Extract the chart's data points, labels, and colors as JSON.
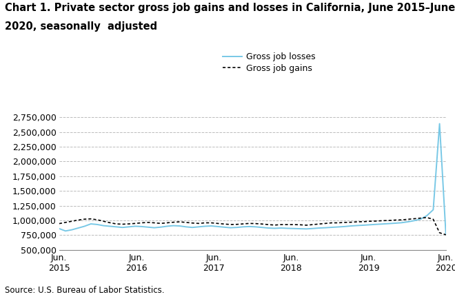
{
  "title_line1": "Chart 1. Private sector gross job gains and losses in California, June 2015–June",
  "title_line2": "2020, seasonally  adjusted",
  "source": "Source: U.S. Bureau of Labor Statistics.",
  "legend": [
    "Gross job losses",
    "Gross job gains"
  ],
  "losses_color": "#78c8e6",
  "gains_color": "#000000",
  "ylim": [
    500000,
    2900000
  ],
  "yticks": [
    500000,
    750000,
    1000000,
    1250000,
    1500000,
    1750000,
    2000000,
    2250000,
    2500000,
    2750000
  ],
  "xtick_labels": [
    "Jun.\n2015",
    "Jun.\n2016",
    "Jun.\n2017",
    "Jun.\n2018",
    "Jun.\n2019",
    "Jun.\n2020"
  ],
  "gross_job_losses": [
    860000,
    820000,
    840000,
    870000,
    900000,
    940000,
    930000,
    910000,
    900000,
    890000,
    880000,
    890000,
    900000,
    895000,
    885000,
    875000,
    885000,
    900000,
    910000,
    905000,
    890000,
    880000,
    890000,
    900000,
    905000,
    895000,
    885000,
    875000,
    880000,
    890000,
    895000,
    890000,
    880000,
    870000,
    865000,
    870000,
    865000,
    862000,
    858000,
    855000,
    862000,
    870000,
    875000,
    882000,
    888000,
    895000,
    905000,
    912000,
    918000,
    925000,
    932000,
    938000,
    945000,
    952000,
    960000,
    975000,
    995000,
    1020000,
    1080000,
    1180000,
    2640000,
    760000
  ],
  "gross_job_gains": [
    945000,
    965000,
    985000,
    1005000,
    1020000,
    1025000,
    1010000,
    985000,
    960000,
    940000,
    935000,
    940000,
    948000,
    958000,
    965000,
    958000,
    948000,
    958000,
    968000,
    975000,
    965000,
    955000,
    948000,
    958000,
    958000,
    948000,
    938000,
    930000,
    932000,
    940000,
    948000,
    945000,
    938000,
    928000,
    920000,
    928000,
    928000,
    928000,
    925000,
    918000,
    928000,
    938000,
    948000,
    958000,
    958000,
    965000,
    968000,
    975000,
    978000,
    985000,
    988000,
    995000,
    998000,
    1005000,
    1008000,
    1018000,
    1028000,
    1038000,
    1048000,
    1018000,
    790000,
    755000
  ],
  "background_color": "#ffffff",
  "grid_color": "#bbbbbb",
  "title_fontsize": 10.5,
  "tick_fontsize": 9,
  "legend_fontsize": 9,
  "source_fontsize": 8.5
}
